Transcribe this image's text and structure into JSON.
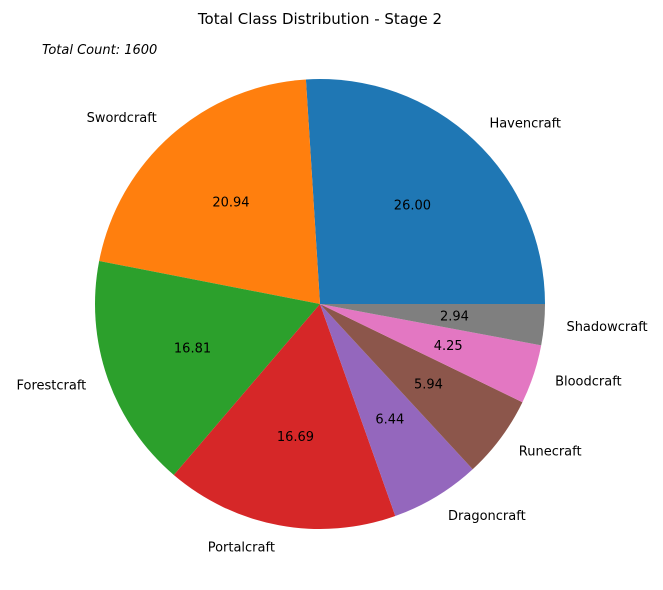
{
  "chart_data": {
    "type": "pie",
    "title": "Total Class Distribution - Stage 2",
    "annotation": "Total Count: 1600",
    "categories": [
      "Havencraft",
      "Swordcraft",
      "Forestcraft",
      "Portalcraft",
      "Dragoncraft",
      "Runecraft",
      "Bloodcraft",
      "Shadowcraft"
    ],
    "values": [
      26.0,
      20.94,
      16.81,
      16.69,
      6.44,
      5.94,
      4.25,
      2.94
    ],
    "value_labels": [
      "26.00",
      "20.94",
      "16.81",
      "16.69",
      "6.44",
      "5.94",
      "4.25",
      "2.94"
    ],
    "colors": [
      "#1f77b4",
      "#ff7f0e",
      "#2ca02c",
      "#d62728",
      "#9467bd",
      "#8c564b",
      "#e377c2",
      "#7f7f7f"
    ],
    "start_angle": 0,
    "direction": "counterclockwise"
  }
}
